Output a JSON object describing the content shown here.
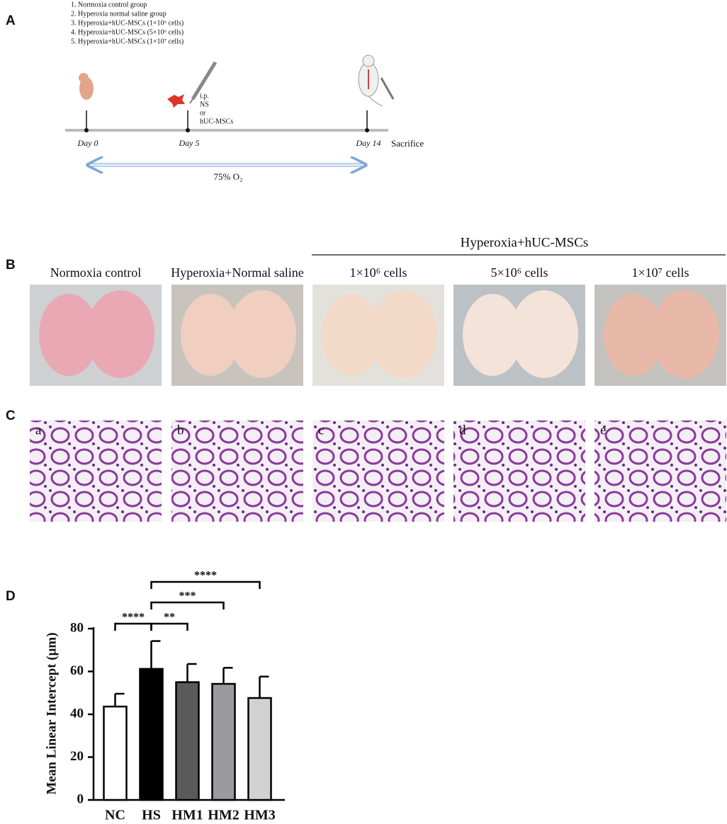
{
  "panel_a": {
    "label": "A",
    "groups": [
      "1.  Normoxia control group",
      "2.  Hyperoxia normal saline group",
      "3.  Hyperoxia+hUC-MSCs (1×10⁶ cells)",
      "4.  Hyperoxia+hUC-MSCs (5×10⁶ cells)",
      "5.  Hyperoxia+hUC-MSCs (1×10⁷ cells)"
    ],
    "injection": [
      "i.p.",
      "NS",
      "or",
      "hUC-MSCs"
    ],
    "timeline": [
      "Day 0",
      "Day 5",
      "Day 14"
    ],
    "endpoint": "Sacrifice",
    "exposure": "75% O₂"
  },
  "panel_b": {
    "label": "B",
    "group_header": "Hyperoxia+hUC-MSCs",
    "columns": [
      "Normoxia control",
      "Hyperoxia+Normal saline",
      "1×10⁶ cells",
      "5×10⁶ cells",
      "1×10⁷ cells"
    ]
  },
  "panel_c": {
    "label": "C",
    "images": [
      "a",
      "b",
      "c",
      "d",
      "e"
    ]
  },
  "panel_d": {
    "label": "D"
  },
  "chart_data": {
    "type": "bar",
    "y_label": "Mean Linear Intercept (μm)",
    "categories": [
      "NC",
      "HS",
      "HM1",
      "HM2",
      "HM3"
    ],
    "values": [
      43.6,
      61.2,
      55,
      54.2,
      47.6
    ],
    "errors": [
      6,
      13,
      8.5,
      7.5,
      10
    ],
    "colors": [
      "#ffffff",
      "#000000",
      "#5a5a5a",
      "#9b9b9f",
      "#d2d2d2"
    ],
    "ylim": [
      0,
      80
    ],
    "yticks": [
      0,
      20,
      40,
      60,
      80
    ],
    "annotations": [
      "****",
      "**",
      "***",
      "****"
    ]
  }
}
